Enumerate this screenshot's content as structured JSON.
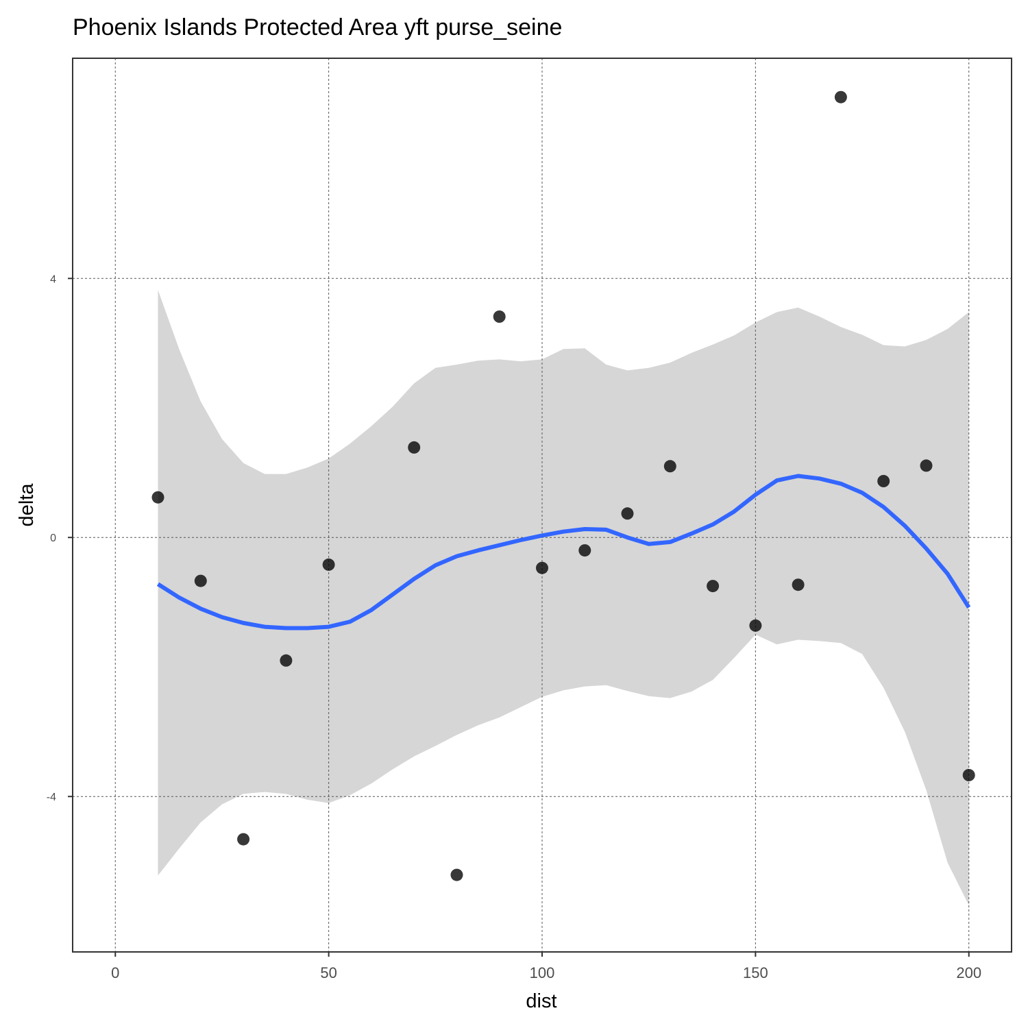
{
  "chart_data": {
    "type": "scatter",
    "title": "Phoenix Islands Protected Area yft purse_seine",
    "xlabel": "dist",
    "ylabel": "delta",
    "xlim": [
      -10,
      210
    ],
    "ylim": [
      -6.4,
      7.4
    ],
    "x_ticks": [
      0,
      50,
      100,
      150,
      200
    ],
    "x_tick_labels": [
      "0",
      "50",
      "100",
      "150",
      "200"
    ],
    "y_ticks": [
      -4,
      0,
      4
    ],
    "y_tick_labels": [
      "-4",
      "0",
      "4"
    ],
    "grid": true,
    "legend": "none",
    "colors": {
      "points": "#000000",
      "smooth_line": "#3366ff",
      "confidence_band": "#d6d6d6",
      "grid": "#555555",
      "panel_border": "#333333"
    },
    "points": {
      "x": [
        10,
        20,
        30,
        40,
        50,
        70,
        80,
        90,
        100,
        110,
        120,
        130,
        140,
        150,
        160,
        170,
        180,
        190,
        200
      ],
      "y": [
        0.62,
        -0.67,
        -4.66,
        -1.9,
        -0.42,
        1.39,
        -5.21,
        3.41,
        -0.47,
        -0.2,
        0.37,
        1.1,
        -0.75,
        -1.36,
        -0.73,
        6.8,
        0.87,
        1.11,
        -3.67
      ]
    },
    "smooth": {
      "x": [
        10,
        15,
        20,
        25,
        30,
        35,
        40,
        45,
        50,
        55,
        60,
        65,
        70,
        75,
        80,
        85,
        90,
        95,
        100,
        105,
        110,
        115,
        120,
        125,
        130,
        135,
        140,
        145,
        150,
        155,
        160,
        165,
        170,
        175,
        180,
        185,
        190,
        195,
        200
      ],
      "y": [
        -0.72,
        -0.93,
        -1.1,
        -1.23,
        -1.32,
        -1.38,
        -1.4,
        -1.4,
        -1.38,
        -1.3,
        -1.12,
        -0.88,
        -0.64,
        -0.43,
        -0.29,
        -0.2,
        -0.12,
        -0.04,
        0.03,
        0.09,
        0.13,
        0.12,
        0.0,
        -0.1,
        -0.07,
        0.06,
        0.2,
        0.4,
        0.66,
        0.88,
        0.95,
        0.91,
        0.83,
        0.69,
        0.47,
        0.18,
        -0.17,
        -0.56,
        -1.08
      ],
      "lower": [
        -5.22,
        -4.8,
        -4.4,
        -4.12,
        -3.96,
        -3.93,
        -3.96,
        -4.05,
        -4.1,
        -3.98,
        -3.8,
        -3.58,
        -3.38,
        -3.22,
        -3.05,
        -2.9,
        -2.78,
        -2.62,
        -2.46,
        -2.36,
        -2.3,
        -2.28,
        -2.37,
        -2.45,
        -2.48,
        -2.38,
        -2.2,
        -1.86,
        -1.5,
        -1.65,
        -1.58,
        -1.6,
        -1.63,
        -1.8,
        -2.32,
        -3.0,
        -3.9,
        -5.02,
        -5.68
      ],
      "upper": [
        3.82,
        2.9,
        2.1,
        1.52,
        1.15,
        0.98,
        0.98,
        1.08,
        1.22,
        1.45,
        1.72,
        2.02,
        2.38,
        2.62,
        2.67,
        2.73,
        2.75,
        2.72,
        2.75,
        2.91,
        2.92,
        2.67,
        2.58,
        2.62,
        2.7,
        2.85,
        2.98,
        3.12,
        3.32,
        3.48,
        3.55,
        3.41,
        3.25,
        3.13,
        2.97,
        2.95,
        3.05,
        3.22,
        3.48
      ]
    }
  }
}
